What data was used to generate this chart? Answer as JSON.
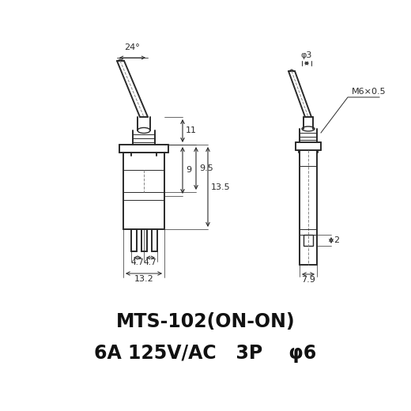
{
  "bg_color": "#ffffff",
  "line_color": "#2a2a2a",
  "dim_color": "#2a2a2a",
  "title1": "MTS-102(ON-ON)",
  "title2": "6A 125V/AC   3P    φ6",
  "title1_fontsize": 17,
  "title2_fontsize": 17,
  "annotations": {
    "angle_label": "24°",
    "dim_11": "11",
    "dim_9": "9",
    "dim_9_5": "9.5",
    "dim_13_5": "13.5",
    "dim_4_7a": "4.7",
    "dim_4_7b": "4.7",
    "dim_13_2": "13.2",
    "dim_phi3": "φ3",
    "dim_M6": "M6×0.5",
    "dim_2": "2",
    "dim_7_9": "7.9"
  }
}
